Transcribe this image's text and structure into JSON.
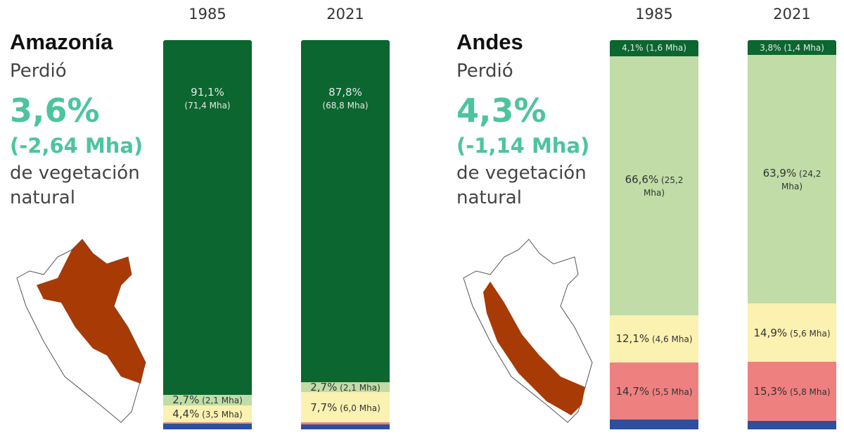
{
  "colors": {
    "forest": "#0b6630",
    "grass": "#c1dca7",
    "agri": "#fbf1b1",
    "other": "#ef8080",
    "water": "#2f4f9c",
    "highlight": "#a83a06",
    "accent": "#4cc4a0"
  },
  "panels": [
    {
      "title": "Amazonía",
      "lost_label": "Perdió",
      "pct": "3,6%",
      "mha": "(-2,64 Mha)",
      "line1": "de vegetación",
      "line2": "natural",
      "map_icon": "peru-map-amazonia"
    },
    {
      "title": "Andes",
      "lost_label": "Perdió",
      "pct": "4,3%",
      "mha": "(-1,14 Mha)",
      "line1": "de vegetación",
      "line2": "natural",
      "map_icon": "peru-map-andes"
    }
  ],
  "chart_data": [
    {
      "type": "bar",
      "stacked": true,
      "region": "Amazonía",
      "categories": [
        "1985",
        "2021"
      ],
      "series": [
        {
          "color": "#0b6630",
          "values": [
            91.1,
            87.8
          ],
          "labels": [
            "91,1%",
            "87,8%"
          ],
          "sub": [
            "(71,4 Mha)",
            "(68,8 Mha)"
          ]
        },
        {
          "color": "#c1dca7",
          "values": [
            2.7,
            2.7
          ],
          "labels": [
            "2,7%",
            "2,7%"
          ],
          "sub": [
            "(2,1 Mha)",
            "(2,1 Mha)"
          ]
        },
        {
          "color": "#fbf1b1",
          "values": [
            4.4,
            7.7
          ],
          "labels": [
            "4,4%",
            "7,7%"
          ],
          "sub": [
            "(3,5 Mha)",
            "(6,0 Mha)"
          ]
        },
        {
          "color": "#ef8080",
          "values": [
            0.4,
            0.5
          ]
        },
        {
          "color": "#2f4f9c",
          "values": [
            1.4,
            1.3
          ]
        }
      ]
    },
    {
      "type": "bar",
      "stacked": true,
      "region": "Andes",
      "categories": [
        "1985",
        "2021"
      ],
      "series": [
        {
          "color": "#0b6630",
          "values": [
            4.1,
            3.8
          ],
          "labels": [
            "4,1% (1,6 Mha)",
            "3,8% (1,4 Mha)"
          ]
        },
        {
          "color": "#c1dca7",
          "values": [
            66.6,
            63.9
          ],
          "labels": [
            "66,6%",
            "63,9%"
          ],
          "sub": [
            "(25,2 Mha)",
            "(24,2 Mha)"
          ]
        },
        {
          "color": "#fbf1b1",
          "values": [
            12.1,
            14.9
          ],
          "labels": [
            "12,1%",
            "14,9%"
          ],
          "sub": [
            "(4,6 Mha)",
            "(5,6 Mha)"
          ]
        },
        {
          "color": "#ef8080",
          "values": [
            14.7,
            15.3
          ],
          "labels": [
            "14,7%",
            "15,3%"
          ],
          "sub": [
            "(5,5 Mha)",
            "(5,8 Mha)"
          ]
        },
        {
          "color": "#2f4f9c",
          "values": [
            2.5,
            2.1
          ]
        }
      ]
    }
  ]
}
